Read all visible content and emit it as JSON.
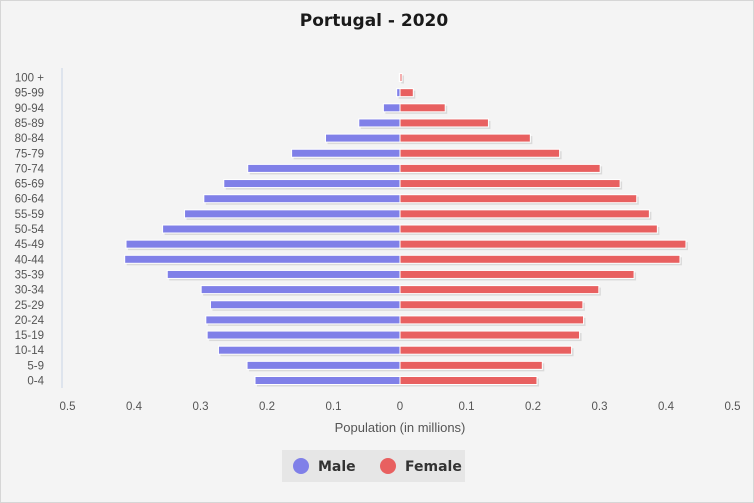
{
  "chart_data": {
    "type": "bar",
    "orientation": "horizontal",
    "title": "Portugal - 2020",
    "xlabel": "Population (in millions)",
    "ylabel": "",
    "xlim": [
      -0.5,
      0.5
    ],
    "x_ticks": [
      "0.5",
      "0.4",
      "0.3",
      "0.2",
      "0.1",
      "0",
      "0.1",
      "0.2",
      "0.3",
      "0.4",
      "0.5"
    ],
    "grid": false,
    "legend_position": "bottom",
    "categories": [
      "100 +",
      "95-99",
      "90-94",
      "85-89",
      "80-84",
      "75-79",
      "70-74",
      "65-69",
      "60-64",
      "55-59",
      "50-54",
      "45-49",
      "40-44",
      "35-39",
      "30-34",
      "25-29",
      "20-24",
      "15-19",
      "10-14",
      "5-9",
      "0-4"
    ],
    "series": [
      {
        "name": "Male",
        "color": "#8080e8",
        "values": [
          0.001,
          0.005,
          0.025,
          0.062,
          0.112,
          0.163,
          0.229,
          0.265,
          0.295,
          0.324,
          0.357,
          0.412,
          0.414,
          0.35,
          0.299,
          0.285,
          0.292,
          0.29,
          0.273,
          0.23,
          0.218
        ]
      },
      {
        "name": "Female",
        "color": "#e86060",
        "values": [
          0.003,
          0.02,
          0.068,
          0.133,
          0.196,
          0.24,
          0.301,
          0.331,
          0.356,
          0.375,
          0.387,
          0.43,
          0.421,
          0.352,
          0.299,
          0.275,
          0.276,
          0.27,
          0.258,
          0.214,
          0.206
        ]
      }
    ]
  }
}
